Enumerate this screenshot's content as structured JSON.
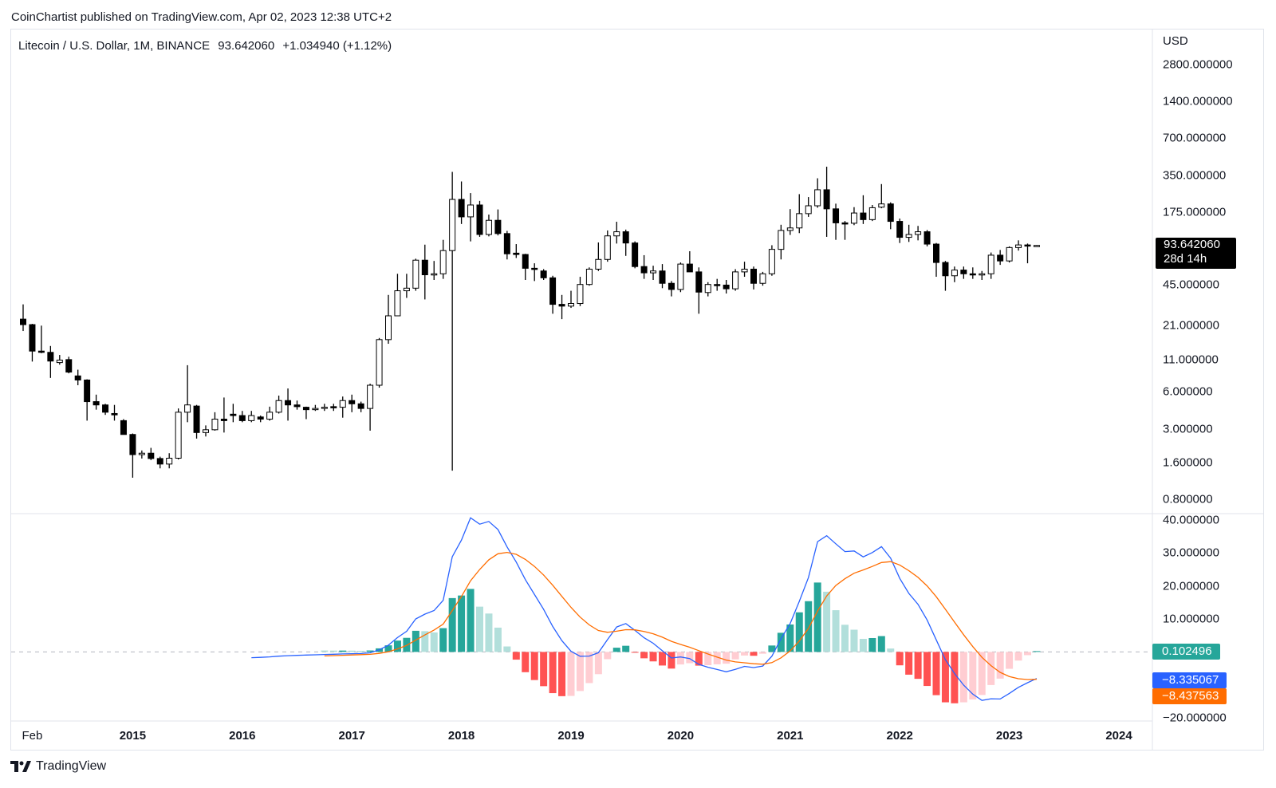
{
  "header": {
    "published": "CoinChartist published on TradingView.com, Apr 02, 2023 12:38 UTC+2"
  },
  "legend": {
    "symbol": "Litecoin / U.S. Dollar, 1M, BINANCE",
    "last": "93.642060",
    "change": "+1.034940 (+1.12%)"
  },
  "price_axis": {
    "currency": "USD",
    "last_price": "93.642060",
    "countdown": "28d 14h"
  },
  "macd_badges": {
    "histogram": "0.102496",
    "macd": "−8.335067",
    "signal": "−8.437563"
  },
  "footer": {
    "brand": "TradingView"
  },
  "colors": {
    "macd": "#2962ff",
    "signal": "#ff6d00",
    "hist_up_strong": "#26a69a",
    "hist_up_weak": "#b2dfdb",
    "hist_down_strong": "#ff5252",
    "hist_down_weak": "#ffcdd2",
    "candle_down": "#000000",
    "candle_up": "#ffffff"
  },
  "chart_data": [
    {
      "type": "candlestick",
      "title": "Litecoin / U.S. Dollar, 1M, BINANCE",
      "interval": "1M",
      "first_bar": "2014-01",
      "y_scale": "log",
      "y_ticks": [
        "2800.000000",
        "1400.000000",
        "700.000000",
        "350.000000",
        "175.000000",
        "45.000000",
        "21.000000",
        "11.000000",
        "6.000000",
        "3.000000",
        "1.600000",
        "0.800000"
      ],
      "x_ticks": [
        "Feb",
        "2015",
        "2016",
        "2017",
        "2018",
        "2019",
        "2020",
        "2021",
        "2022",
        "2023",
        "2024"
      ],
      "ohlc": [
        [
          23.5,
          31,
          18.8,
          21.2
        ],
        [
          21.2,
          21.5,
          10.6,
          12.9
        ],
        [
          12.9,
          20.8,
          12.4,
          12.6
        ],
        [
          12.6,
          14.2,
          7.8,
          10.7
        ],
        [
          10.4,
          12.0,
          10.0,
          10.9
        ],
        [
          11.0,
          11.6,
          8.5,
          8.7
        ],
        [
          8.1,
          9.1,
          6.8,
          7.5
        ],
        [
          7.5,
          7.6,
          3.5,
          5.0
        ],
        [
          5.0,
          5.7,
          4.3,
          4.7
        ],
        [
          4.7,
          4.8,
          3.9,
          4.1
        ],
        [
          4.0,
          4.7,
          3.5,
          3.9
        ],
        [
          3.5,
          3.6,
          2.7,
          2.7
        ],
        [
          2.7,
          2.75,
          1.2,
          1.85
        ],
        [
          1.85,
          2.0,
          1.72,
          1.9
        ],
        [
          1.9,
          2.1,
          1.67,
          1.72
        ],
        [
          1.72,
          1.78,
          1.43,
          1.55
        ],
        [
          1.55,
          1.9,
          1.43,
          1.73
        ],
        [
          1.73,
          4.4,
          1.69,
          4.1
        ],
        [
          4.1,
          9.9,
          3.4,
          4.7
        ],
        [
          4.6,
          4.7,
          2.5,
          2.8
        ],
        [
          2.8,
          3.2,
          2.6,
          2.95
        ],
        [
          2.95,
          4.1,
          2.9,
          3.6
        ],
        [
          3.6,
          5.4,
          2.8,
          3.5
        ],
        [
          3.95,
          4.8,
          3.4,
          3.85
        ],
        [
          3.85,
          4.2,
          3.4,
          3.5
        ],
        [
          3.5,
          4.2,
          3.4,
          3.85
        ],
        [
          3.75,
          3.85,
          3.4,
          3.6
        ],
        [
          3.6,
          4.55,
          3.5,
          4.1
        ],
        [
          4.1,
          5.6,
          4.0,
          5.1
        ],
        [
          5.1,
          6.4,
          3.5,
          4.7
        ],
        [
          4.7,
          5.1,
          4.3,
          4.55
        ],
        [
          4.5,
          4.55,
          3.6,
          4.3
        ],
        [
          4.3,
          4.7,
          4.2,
          4.4
        ],
        [
          4.4,
          4.8,
          4.2,
          4.5
        ],
        [
          4.55,
          4.8,
          4.2,
          4.5
        ],
        [
          4.5,
          5.5,
          3.7,
          5.1
        ],
        [
          5.1,
          5.7,
          4.1,
          4.8
        ],
        [
          4.8,
          5.0,
          4.1,
          4.4
        ],
        [
          4.4,
          7.0,
          2.9,
          6.8
        ],
        [
          6.8,
          16.5,
          6.5,
          16.0
        ],
        [
          16.0,
          37,
          14.8,
          25
        ],
        [
          25,
          55,
          25,
          40
        ],
        [
          40,
          55,
          35,
          42
        ],
        [
          42,
          73,
          40,
          71
        ],
        [
          71,
          95,
          34,
          54
        ],
        [
          54,
          70,
          49,
          55
        ],
        [
          55,
          104,
          50,
          85
        ],
        [
          85,
          372,
          1.37,
          222
        ],
        [
          222,
          311,
          140,
          160
        ],
        [
          160,
          250,
          101,
          200
        ],
        [
          200,
          216,
          110,
          115
        ],
        [
          115,
          167,
          111,
          150
        ],
        [
          150,
          184,
          113,
          117
        ],
        [
          117,
          123,
          72,
          80
        ],
        [
          81,
          96,
          74,
          79
        ],
        [
          79,
          80,
          49,
          61
        ],
        [
          61,
          67,
          48,
          60
        ],
        [
          58,
          60,
          49,
          51
        ],
        [
          51,
          53,
          26,
          31
        ],
        [
          31,
          37,
          23.5,
          30
        ],
        [
          30,
          40,
          29,
          31.5
        ],
        [
          31.5,
          52,
          30,
          45
        ],
        [
          45,
          62,
          44,
          60
        ],
        [
          60,
          99,
          58,
          72
        ],
        [
          72,
          124,
          69,
          112
        ],
        [
          112,
          146,
          97,
          121
        ],
        [
          121,
          126,
          77,
          98
        ],
        [
          98,
          101,
          61,
          63
        ],
        [
          63,
          78,
          50,
          56
        ],
        [
          56,
          64,
          49,
          58
        ],
        [
          58,
          66,
          42,
          46
        ],
        [
          46,
          48,
          36,
          41
        ],
        [
          41,
          68,
          39,
          66
        ],
        [
          66,
          84,
          57,
          57
        ],
        [
          57,
          62,
          26,
          39
        ],
        [
          38.7,
          47,
          36,
          45
        ],
        [
          45,
          50,
          40,
          44.5
        ],
        [
          44.5,
          49,
          38,
          41.5
        ],
        [
          41.5,
          60,
          40,
          57
        ],
        [
          57,
          69,
          52,
          60
        ],
        [
          60,
          63,
          41,
          46
        ],
        [
          46,
          57,
          44,
          55
        ],
        [
          55,
          94,
          53,
          87
        ],
        [
          87,
          138,
          72,
          124
        ],
        [
          124,
          185,
          114,
          130
        ],
        [
          130,
          245,
          118,
          170
        ],
        [
          170,
          232,
          160,
          197
        ],
        [
          197,
          330,
          190,
          266
        ],
        [
          266,
          410,
          110,
          186
        ],
        [
          186,
          205,
          104,
          143
        ],
        [
          143,
          148,
          104,
          142
        ],
        [
          142,
          192,
          137,
          172
        ],
        [
          172,
          240,
          140,
          152
        ],
        [
          152,
          200,
          148,
          190
        ],
        [
          192,
          296,
          188,
          204
        ],
        [
          204,
          210,
          127,
          147
        ],
        [
          147,
          155,
          98,
          109
        ],
        [
          109,
          138,
          100,
          115
        ],
        [
          115,
          135,
          103,
          121
        ],
        [
          121,
          125,
          92,
          96
        ],
        [
          96,
          98,
          52,
          68
        ],
        [
          68,
          70,
          40,
          53
        ],
        [
          53,
          63,
          47,
          59
        ],
        [
          59,
          63,
          50,
          55
        ],
        [
          55,
          62,
          50,
          54
        ],
        [
          54,
          58,
          49,
          55
        ],
        [
          55,
          82,
          50,
          78
        ],
        [
          78,
          86,
          65,
          70
        ],
        [
          70,
          92,
          68,
          90
        ],
        [
          90,
          103,
          85,
          94.5
        ],
        [
          94.5,
          97,
          67,
          92.61
        ],
        [
          92.61,
          94.2,
          92.0,
          93.64206
        ]
      ]
    },
    {
      "type": "macd",
      "y_ticks": [
        "40.000000",
        "30.000000",
        "20.000000",
        "10.000000",
        "−20.000000"
      ],
      "last": {
        "histogram": 0.102496,
        "macd": -8.335067,
        "signal": -8.437563
      }
    }
  ]
}
